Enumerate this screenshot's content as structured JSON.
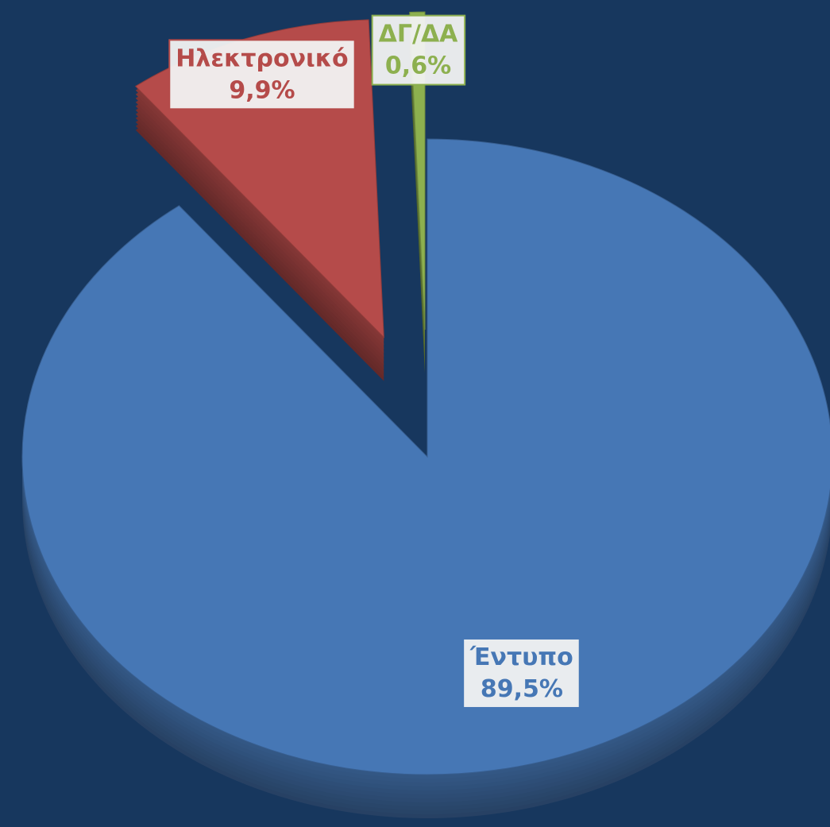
{
  "chart_data": {
    "type": "pie",
    "categories": [
      "Έντυπο",
      "Ηλεκτρονικό",
      "ΔΓ/ΔΑ"
    ],
    "values": [
      89.5,
      9.9,
      0.6
    ],
    "value_labels": [
      "89,5%",
      "9,9%",
      "0,6%"
    ],
    "colors": [
      "#4677b5",
      "#b54b4a",
      "#8db04f"
    ],
    "exploded": [
      false,
      true,
      true
    ]
  }
}
